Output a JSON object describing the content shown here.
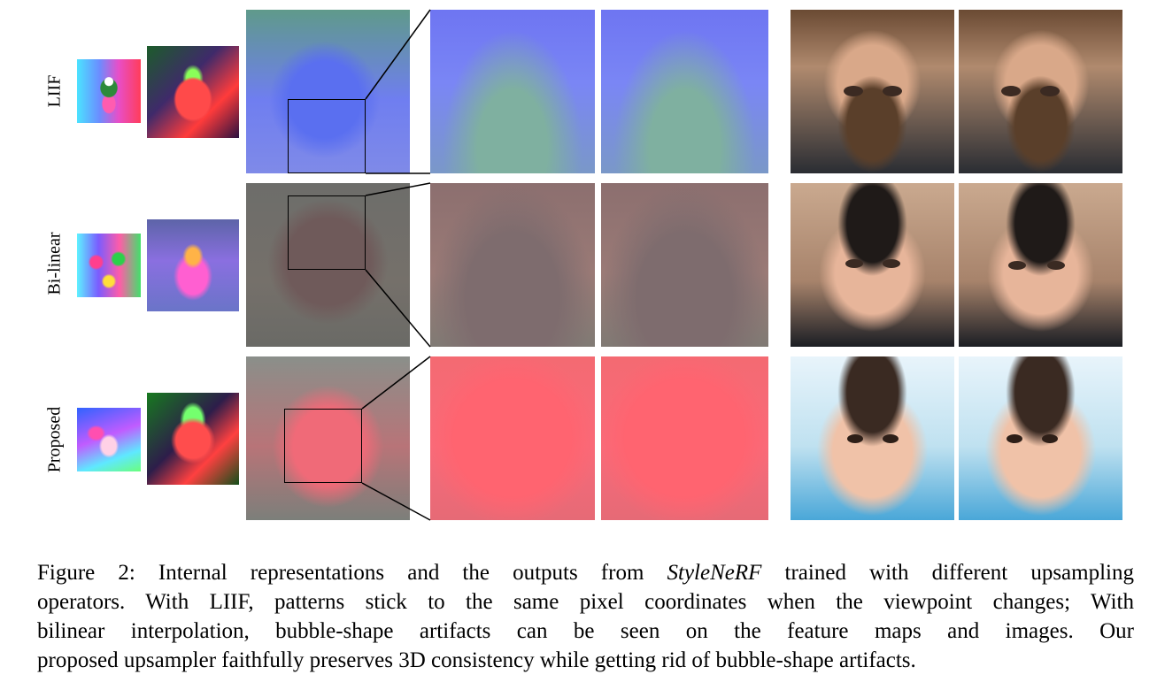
{
  "rows": [
    {
      "id": "liif",
      "label": "LIIF"
    },
    {
      "id": "bilinear",
      "label": "Bi-linear"
    },
    {
      "id": "proposed",
      "label": "Proposed"
    }
  ],
  "caption": {
    "line1_prefix": "Figure 2: Internal representations and the outputs from ",
    "line1_italic": "StyleNeRF",
    "line1_suffix": " trained with different upsampling",
    "line2": "operators. With LIIF, patterns stick to the same pixel coordinates when the viewpoint changes; With",
    "line3": "bilinear interpolation, bubble-shape artifacts can be seen on the feature maps and images.  Our",
    "line4": "proposed upsampler faithfully preserves 3D consistency while getting rid of bubble-shape artifacts."
  }
}
